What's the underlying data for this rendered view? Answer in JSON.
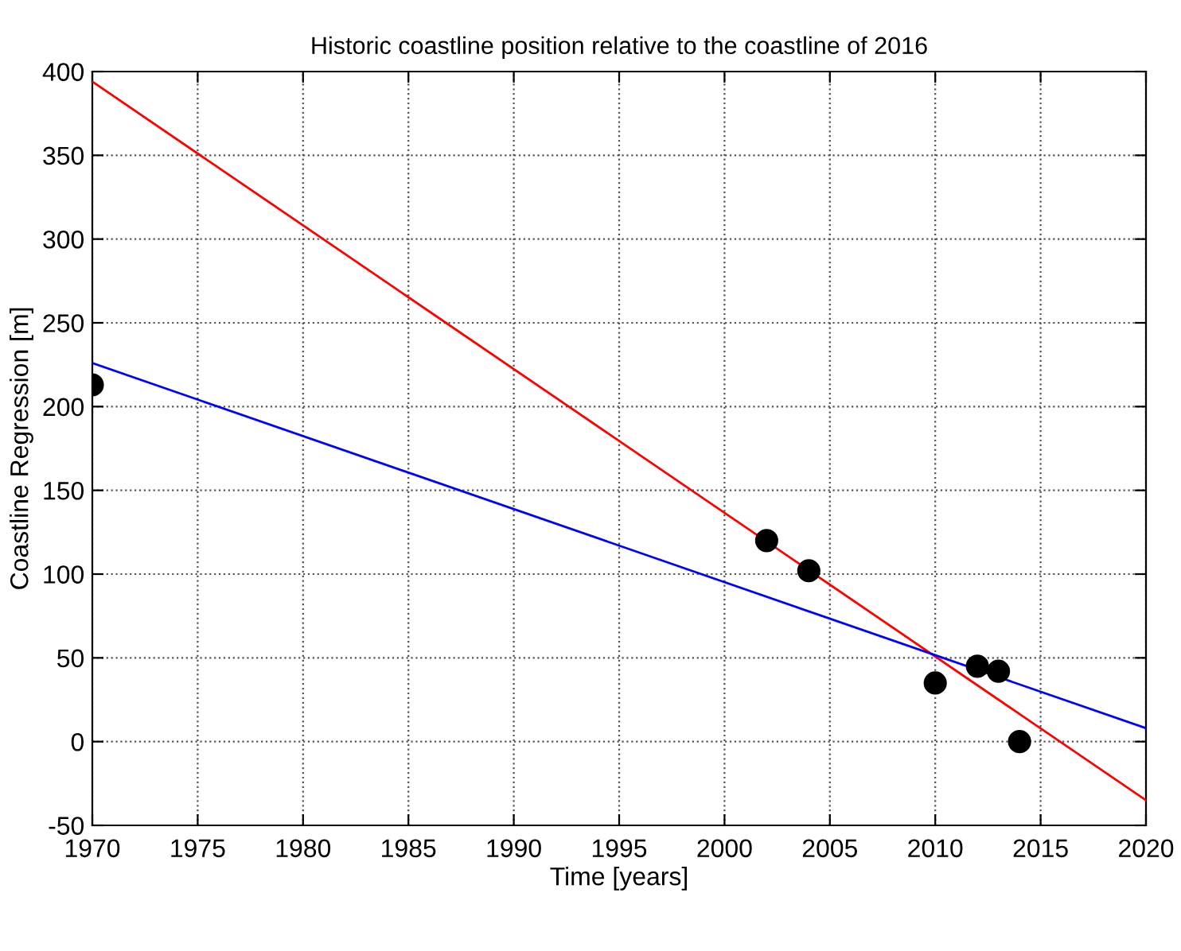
{
  "chart_data": {
    "type": "scatter",
    "title": "Historic coastline position relative to the coastline of 2016",
    "xlabel": "Time [years]",
    "ylabel": "Coastline Regression [m]",
    "series": [
      {
        "color": "#000000",
        "marker": "circle",
        "x": [
          1970,
          2002,
          2004,
          2010,
          2012,
          2013,
          2014
        ],
        "values": [
          213,
          120,
          102,
          35,
          45,
          42,
          0
        ]
      },
      {
        "type": "line",
        "color": "#ff0000",
        "marker": "none",
        "x": [
          1970,
          2020
        ],
        "values": [
          394,
          -35
        ]
      },
      {
        "type": "line",
        "color": "#0000ff",
        "marker": "none",
        "x": [
          1970,
          2020
        ],
        "values": [
          226,
          8
        ]
      }
    ],
    "xlim": [
      1970,
      2020
    ],
    "xticks": [
      1970,
      1975,
      1980,
      1985,
      1990,
      1995,
      2000,
      2005,
      2010,
      2015,
      2020
    ],
    "ylim": [
      -50,
      400
    ],
    "yticks": [
      -50,
      0,
      50,
      100,
      150,
      200,
      250,
      300,
      350,
      400
    ],
    "grid": true,
    "line_style": "solid"
  }
}
